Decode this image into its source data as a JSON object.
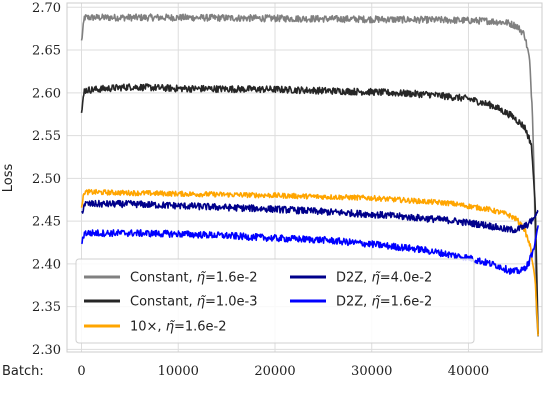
{
  "chart_data": {
    "type": "line",
    "title": "",
    "ylabel": "Loss",
    "xlabel": "Batch:",
    "xlim": [
      -1500,
      47600
    ],
    "ylim": [
      2.297,
      2.705
    ],
    "xticks": [
      0,
      10000,
      20000,
      30000,
      40000
    ],
    "xtick_labels": [
      "0",
      "10000",
      "20000",
      "30000",
      "40000"
    ],
    "yticks": [
      2.3,
      2.35,
      2.4,
      2.45,
      2.5,
      2.55,
      2.6,
      2.65,
      2.7
    ],
    "ytick_labels": [
      "2.30",
      "2.35",
      "2.40",
      "2.45",
      "2.50",
      "2.55",
      "2.60",
      "2.65",
      "2.70"
    ],
    "grid": true,
    "legend_placement": "bottom-left",
    "series": [
      {
        "name": "Constant, η̃=1.6e-2",
        "color": "#808080",
        "noise": 0.004,
        "points": [
          [
            0,
            2.66
          ],
          [
            300,
            2.688
          ],
          [
            5000,
            2.688
          ],
          [
            10000,
            2.688
          ],
          [
            20000,
            2.687
          ],
          [
            30000,
            2.686
          ],
          [
            38000,
            2.685
          ],
          [
            42000,
            2.684
          ],
          [
            44000,
            2.682
          ],
          [
            45000,
            2.678
          ],
          [
            45800,
            2.668
          ],
          [
            46300,
            2.64
          ],
          [
            46600,
            2.58
          ],
          [
            46800,
            2.5
          ],
          [
            47000,
            2.35
          ],
          [
            47200,
            2.315
          ]
        ]
      },
      {
        "name": "Constant, η̃=1.0e-3",
        "color": "#262626",
        "noise": 0.004,
        "points": [
          [
            0,
            2.576
          ],
          [
            300,
            2.603
          ],
          [
            5000,
            2.607
          ],
          [
            10000,
            2.605
          ],
          [
            20000,
            2.604
          ],
          [
            30000,
            2.601
          ],
          [
            36000,
            2.598
          ],
          [
            40000,
            2.593
          ],
          [
            42500,
            2.585
          ],
          [
            44500,
            2.573
          ],
          [
            45800,
            2.56
          ],
          [
            46500,
            2.54
          ],
          [
            46900,
            2.47
          ],
          [
            47200,
            2.318
          ]
        ]
      },
      {
        "name": "10×, η̃=1.6e-2",
        "color": "#FFA500",
        "noise": 0.003,
        "points": [
          [
            0,
            2.468
          ],
          [
            300,
            2.484
          ],
          [
            5000,
            2.483
          ],
          [
            10000,
            2.482
          ],
          [
            20000,
            2.48
          ],
          [
            30000,
            2.477
          ],
          [
            38000,
            2.471
          ],
          [
            42000,
            2.464
          ],
          [
            44000,
            2.458
          ],
          [
            45000,
            2.452
          ],
          [
            45800,
            2.44
          ],
          [
            46400,
            2.42
          ],
          [
            46900,
            2.38
          ],
          [
            47200,
            2.316
          ]
        ]
      },
      {
        "name": "D2Z, η̃=4.0e-2",
        "color": "#00008B",
        "noise": 0.004,
        "points": [
          [
            0,
            2.458
          ],
          [
            300,
            2.47
          ],
          [
            5000,
            2.47
          ],
          [
            10000,
            2.468
          ],
          [
            20000,
            2.464
          ],
          [
            30000,
            2.458
          ],
          [
            38000,
            2.451
          ],
          [
            42000,
            2.445
          ],
          [
            44000,
            2.44
          ],
          [
            45000,
            2.44
          ],
          [
            46000,
            2.445
          ],
          [
            46700,
            2.452
          ],
          [
            47200,
            2.462
          ]
        ]
      },
      {
        "name": "D2Z, η̃=1.6e-2",
        "color": "#0000FF",
        "noise": 0.004,
        "points": [
          [
            0,
            2.425
          ],
          [
            300,
            2.436
          ],
          [
            5000,
            2.436
          ],
          [
            10000,
            2.435
          ],
          [
            15000,
            2.433
          ],
          [
            20000,
            2.43
          ],
          [
            25000,
            2.428
          ],
          [
            30000,
            2.423
          ],
          [
            35000,
            2.417
          ],
          [
            40000,
            2.407
          ],
          [
            43000,
            2.398
          ],
          [
            44500,
            2.391
          ],
          [
            45500,
            2.392
          ],
          [
            46200,
            2.4
          ],
          [
            46800,
            2.42
          ],
          [
            47200,
            2.445
          ]
        ]
      }
    ],
    "legend": {
      "items": [
        {
          "prefix": "Constant, ",
          "eta": "η",
          "suffix": "=1.6e-2",
          "color": "#808080"
        },
        {
          "prefix": "Constant, ",
          "eta": "η",
          "suffix": "=1.0e-3",
          "color": "#262626"
        },
        {
          "prefix": "10×, ",
          "eta": "η",
          "suffix": "=1.6e-2",
          "color": "#FFA500"
        },
        {
          "prefix": "D2Z, ",
          "eta": "η",
          "suffix": "=4.0e-2",
          "color": "#00008B"
        },
        {
          "prefix": "D2Z, ",
          "eta": "η",
          "suffix": "=1.6e-2",
          "color": "#0000FF"
        }
      ]
    }
  }
}
